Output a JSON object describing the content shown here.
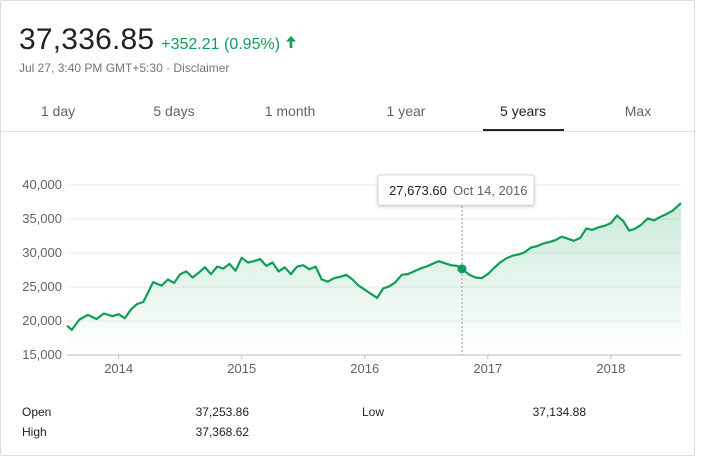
{
  "quote": {
    "price": "37,336.85",
    "change": "+352.21 (0.95%)",
    "meta": "Jul 27, 3:40 PM GMT+5:30 · Disclaimer",
    "up_color": "#0f9d58"
  },
  "tabs": [
    {
      "label": "1 day"
    },
    {
      "label": "5 days"
    },
    {
      "label": "1 month"
    },
    {
      "label": "1 year"
    },
    {
      "label": "5 years",
      "active": true
    },
    {
      "label": "Max"
    }
  ],
  "tooltip": {
    "value": "27,673.60",
    "date": "Oct 14, 2016"
  },
  "stats": {
    "open_label": "Open",
    "open_value": "37,253.86",
    "high_label": "High",
    "high_value": "37,368.62",
    "low_label": "Low",
    "low_value": "37,134.88"
  },
  "chart_data": {
    "type": "area",
    "line_color": "#0f9d58",
    "ylim": [
      15000,
      40000
    ],
    "y_ticks": [
      "40,000",
      "35,000",
      "30,000",
      "25,000",
      "20,000",
      "15,000"
    ],
    "x_ticks": [
      "2014",
      "2015",
      "2016",
      "2017",
      "2018"
    ],
    "highlight": {
      "x": 2016.79,
      "y": 27673.6
    },
    "x": [
      2013.58,
      2013.62,
      2013.68,
      2013.75,
      2013.82,
      2013.88,
      2013.95,
      2014.0,
      2014.05,
      2014.1,
      2014.15,
      2014.2,
      2014.28,
      2014.35,
      2014.4,
      2014.45,
      2014.5,
      2014.55,
      2014.6,
      2014.65,
      2014.7,
      2014.75,
      2014.8,
      2014.85,
      2014.9,
      2014.95,
      2015.0,
      2015.05,
      2015.1,
      2015.15,
      2015.2,
      2015.25,
      2015.3,
      2015.35,
      2015.4,
      2015.45,
      2015.5,
      2015.55,
      2015.6,
      2015.65,
      2015.7,
      2015.75,
      2015.8,
      2015.85,
      2015.9,
      2015.95,
      2016.0,
      2016.05,
      2016.1,
      2016.15,
      2016.2,
      2016.25,
      2016.3,
      2016.35,
      2016.4,
      2016.45,
      2016.5,
      2016.55,
      2016.6,
      2016.65,
      2016.7,
      2016.75,
      2016.79,
      2016.85,
      2016.9,
      2016.95,
      2017.0,
      2017.05,
      2017.1,
      2017.15,
      2017.2,
      2017.25,
      2017.3,
      2017.35,
      2017.4,
      2017.45,
      2017.5,
      2017.55,
      2017.6,
      2017.65,
      2017.7,
      2017.75,
      2017.8,
      2017.85,
      2017.9,
      2017.95,
      2018.0,
      2018.05,
      2018.1,
      2018.15,
      2018.2,
      2018.25,
      2018.3,
      2018.35,
      2018.4,
      2018.45,
      2018.5,
      2018.57
    ],
    "y": [
      19300,
      18700,
      20200,
      20900,
      20300,
      21100,
      20700,
      21000,
      20400,
      21700,
      22500,
      22800,
      25700,
      25200,
      26100,
      25600,
      26900,
      27300,
      26400,
      27100,
      27900,
      26900,
      28000,
      27700,
      28400,
      27400,
      29300,
      28600,
      28800,
      29100,
      28100,
      28600,
      27300,
      27900,
      26900,
      28000,
      28200,
      27600,
      28000,
      26100,
      25800,
      26300,
      26500,
      26800,
      26100,
      25200,
      24600,
      24000,
      23400,
      24800,
      25100,
      25700,
      26800,
      26900,
      27300,
      27700,
      28000,
      28400,
      28800,
      28500,
      28200,
      28100,
      27673.6,
      26800,
      26400,
      26300,
      26900,
      27800,
      28600,
      29200,
      29600,
      29800,
      30100,
      30800,
      31000,
      31400,
      31600,
      31900,
      32400,
      32100,
      31800,
      32200,
      33600,
      33400,
      33800,
      34000,
      34400,
      35500,
      34700,
      33300,
      33600,
      34200,
      35100,
      34800,
      35300,
      35700,
      36200,
      37336.85
    ]
  }
}
